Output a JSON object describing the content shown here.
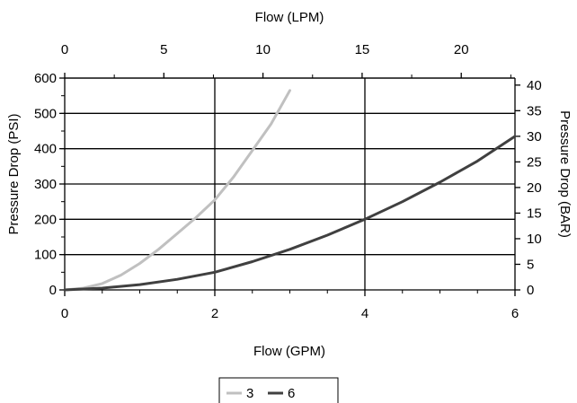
{
  "chart_data": {
    "type": "line",
    "title": "",
    "x_bottom": {
      "label": "Flow (GPM)",
      "range": [
        0,
        6
      ],
      "ticks": [
        0,
        2,
        4,
        6
      ]
    },
    "x_top": {
      "label": "Flow (LPM)",
      "range": [
        0,
        22.71
      ],
      "ticks": [
        0,
        5,
        10,
        15,
        20
      ]
    },
    "y_left": {
      "label": "Pressure Drop (PSI)",
      "range": [
        0,
        600
      ],
      "ticks": [
        0,
        100,
        200,
        300,
        400,
        500,
        600
      ]
    },
    "y_right": {
      "label": "Pressure Drop (BAR)",
      "range": [
        0,
        41.37
      ],
      "ticks": [
        0,
        5,
        10,
        15,
        20,
        25,
        30,
        35,
        40
      ]
    },
    "grid": {
      "horizontal": true,
      "vertical": true
    },
    "legend_position": "bottom-center",
    "series": [
      {
        "name": "3",
        "color": "#c0c0c0",
        "x": [
          0,
          0.25,
          0.5,
          0.75,
          1.0,
          1.25,
          1.5,
          1.75,
          2.0,
          2.25,
          2.5,
          2.75,
          3.0
        ],
        "y": [
          0,
          5,
          18,
          42,
          75,
          115,
          160,
          205,
          255,
          320,
          395,
          470,
          565
        ]
      },
      {
        "name": "6",
        "color": "#404040",
        "x": [
          0,
          0.5,
          1.0,
          1.5,
          2.0,
          2.5,
          3.0,
          3.5,
          4.0,
          4.5,
          5.0,
          5.5,
          6.0
        ],
        "y": [
          0,
          5,
          15,
          30,
          50,
          80,
          115,
          155,
          200,
          250,
          305,
          365,
          435
        ]
      }
    ]
  }
}
